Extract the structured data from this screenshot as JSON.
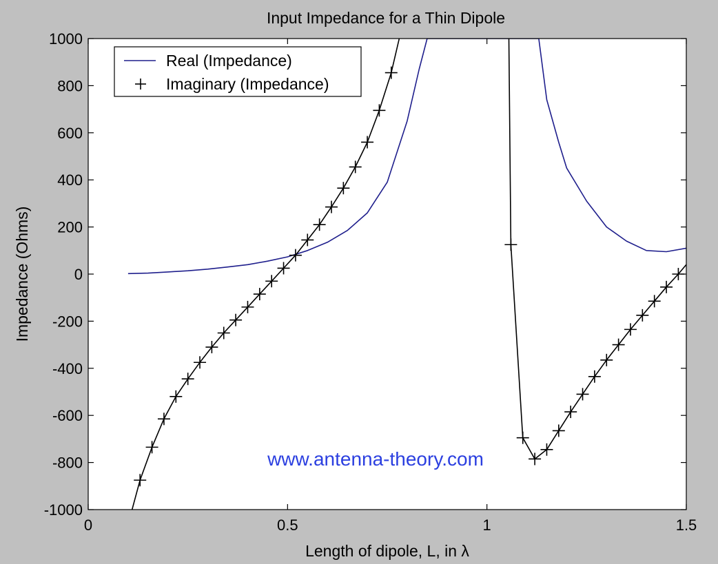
{
  "chart_data": {
    "type": "line",
    "title": "Input Impedance for a Thin Dipole",
    "xlabel": "Length of dipole, L, in λ",
    "ylabel": "Impedance (Ohms)",
    "xlim": [
      0,
      1.5
    ],
    "ylim": [
      -1000,
      1000
    ],
    "xticks": [
      0,
      0.5,
      1,
      1.5
    ],
    "xtick_labels": [
      "0",
      "0.5",
      "1",
      "1.5"
    ],
    "yticks": [
      -1000,
      -800,
      -600,
      -400,
      -200,
      0,
      200,
      400,
      600,
      800,
      1000
    ],
    "ytick_labels": [
      "-1000",
      "-800",
      "-600",
      "-400",
      "-200",
      "0",
      "200",
      "400",
      "600",
      "800",
      "1000"
    ],
    "grid": false,
    "legend_position": "top-left",
    "annotation": "www.antenna-theory.com",
    "series": [
      {
        "name": "Real (Impedance)",
        "color": "#1e1e8c",
        "marker": "none",
        "x": [
          0.1,
          0.15,
          0.2,
          0.25,
          0.3,
          0.35,
          0.4,
          0.45,
          0.5,
          0.55,
          0.6,
          0.65,
          0.7,
          0.75,
          0.8,
          0.83,
          0.85,
          1.13,
          1.15,
          1.18,
          1.2,
          1.25,
          1.3,
          1.35,
          1.4,
          1.45,
          1.5
        ],
        "y": [
          2,
          4,
          9,
          14,
          21,
          30,
          40,
          55,
          73,
          100,
          135,
          185,
          260,
          390,
          650,
          870,
          1000,
          1000,
          740,
          560,
          450,
          310,
          200,
          140,
          100,
          95,
          110
        ]
      },
      {
        "name": "Imaginary (Impedance)",
        "color": "#000000",
        "marker": "+",
        "segments": [
          {
            "x": [
              0.11,
              0.13,
              0.16,
              0.19,
              0.22,
              0.25,
              0.28,
              0.31,
              0.34,
              0.37,
              0.4,
              0.43,
              0.46,
              0.49,
              0.52,
              0.55,
              0.58,
              0.61,
              0.64,
              0.67,
              0.7,
              0.73,
              0.76,
              0.78
            ],
            "y": [
              -1000,
              -875,
              -735,
              -615,
              -520,
              -445,
              -375,
              -310,
              -250,
              -195,
              -140,
              -85,
              -30,
              25,
              80,
              145,
              210,
              285,
              365,
              455,
              560,
              695,
              855,
              1000
            ]
          },
          {
            "x": [
              1.055,
              1.06,
              1.09,
              1.12,
              1.15,
              1.18,
              1.21,
              1.24,
              1.27,
              1.3,
              1.33,
              1.36,
              1.39,
              1.42,
              1.45,
              1.48,
              1.5
            ],
            "y": [
              1000,
              125,
              -695,
              -785,
              -745,
              -665,
              -585,
              -510,
              -435,
              -365,
              -300,
              -235,
              -175,
              -115,
              -55,
              0,
              40
            ]
          }
        ],
        "marker_points": {
          "x": [
            0.13,
            0.16,
            0.19,
            0.22,
            0.25,
            0.28,
            0.31,
            0.34,
            0.37,
            0.4,
            0.43,
            0.46,
            0.49,
            0.52,
            0.55,
            0.58,
            0.61,
            0.64,
            0.67,
            0.7,
            0.73,
            0.76,
            1.06,
            1.09,
            1.12,
            1.15,
            1.18,
            1.21,
            1.24,
            1.27,
            1.3,
            1.33,
            1.36,
            1.39,
            1.42,
            1.45,
            1.48
          ],
          "y": [
            -875,
            -735,
            -615,
            -520,
            -445,
            -375,
            -310,
            -250,
            -195,
            -140,
            -85,
            -30,
            25,
            80,
            145,
            210,
            285,
            365,
            455,
            560,
            695,
            855,
            125,
            -695,
            -785,
            -745,
            -665,
            -585,
            -510,
            -435,
            -365,
            -300,
            -235,
            -175,
            -115,
            -55,
            0
          ]
        }
      }
    ],
    "colors": {
      "background": "#c0c0c0",
      "plot_area": "#ffffff",
      "watermark": "#2b3fe0"
    }
  }
}
